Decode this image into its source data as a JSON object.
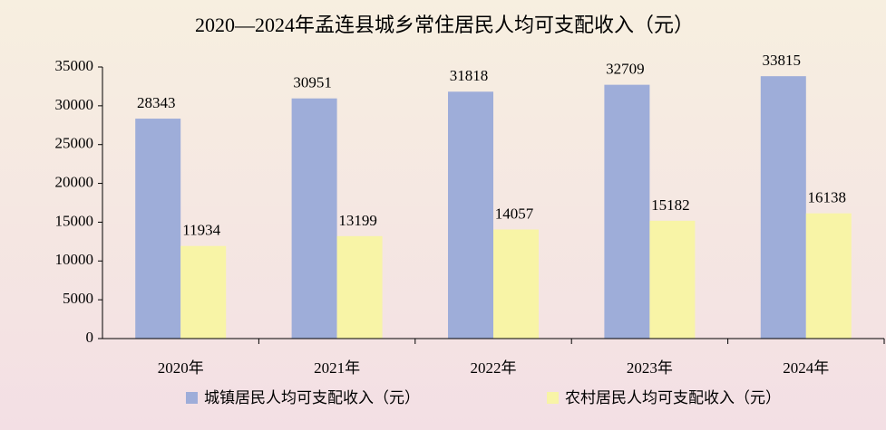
{
  "chart_data": {
    "type": "bar",
    "title": "2020—2024年孟连县城乡常住居民人均可支配收入（元）",
    "categories": [
      "2020年",
      "2021年",
      "2022年",
      "2023年",
      "2024年"
    ],
    "series": [
      {
        "name": "城镇居民人均可支配收入（元）",
        "color": "#9eadd9",
        "values": [
          28343,
          30951,
          31818,
          32709,
          33815
        ]
      },
      {
        "name": "农村居民人均可支配收入（元）",
        "color": "#f8f4a6",
        "values": [
          11934,
          13199,
          14057,
          15182,
          16138
        ]
      }
    ],
    "ylim": [
      0,
      35000
    ],
    "yticks": [
      0,
      5000,
      10000,
      15000,
      20000,
      25000,
      30000,
      35000
    ],
    "legend": "bottom"
  }
}
